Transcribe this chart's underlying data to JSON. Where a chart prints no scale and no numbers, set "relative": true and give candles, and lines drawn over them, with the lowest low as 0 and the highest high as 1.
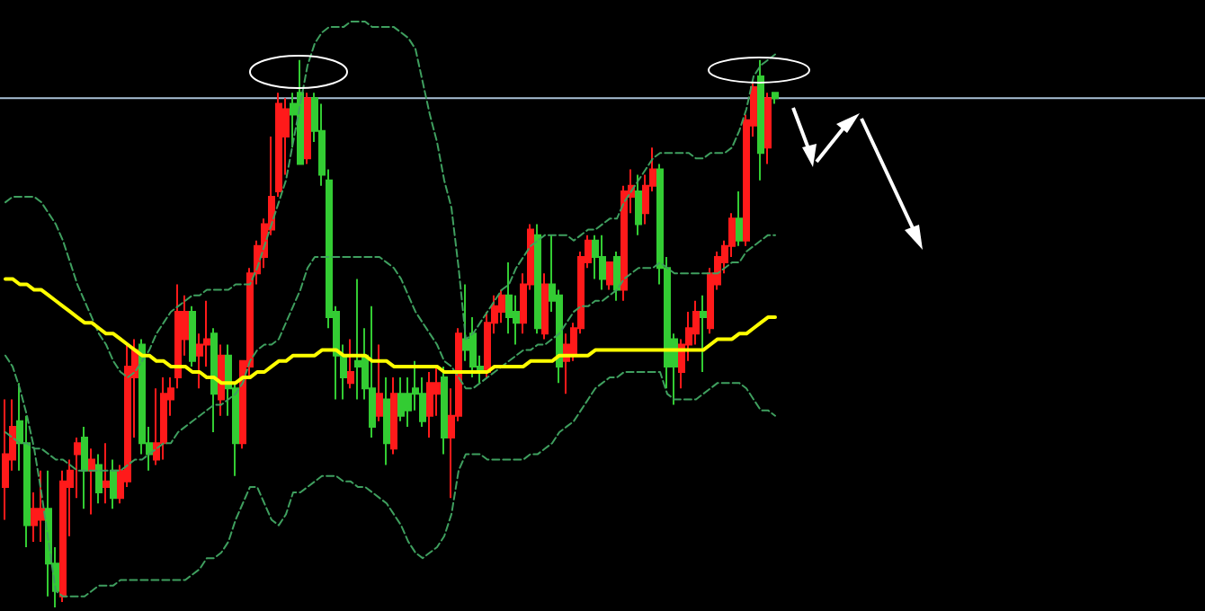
{
  "chart_data": {
    "type": "candlestick",
    "relative": true,
    "categories": [
      null,
      null,
      null,
      null,
      null,
      null,
      null,
      null,
      null,
      null,
      null,
      null,
      null,
      null,
      null,
      null,
      null,
      null,
      null,
      null,
      null,
      null,
      null,
      null,
      null,
      null,
      null,
      null,
      null,
      null,
      null,
      null,
      null,
      null,
      null,
      null,
      null,
      null,
      null,
      null,
      null,
      null,
      null,
      null,
      null,
      null,
      null,
      null,
      null,
      null,
      null,
      null,
      null,
      null,
      null,
      null,
      null,
      null,
      null,
      null,
      null,
      null,
      null,
      null,
      null,
      null,
      null,
      null,
      null,
      null,
      null,
      null,
      null,
      null,
      null,
      null,
      null,
      null,
      null,
      null,
      null,
      null,
      null,
      null,
      null,
      null,
      null,
      null,
      null,
      null,
      null,
      null,
      null,
      null,
      null,
      null,
      null,
      null,
      null,
      null,
      null,
      null,
      null,
      null,
      null,
      null,
      null,
      null
    ],
    "ohlc": [
      [
        0.22,
        0.38,
        0.16,
        0.28
      ],
      [
        0.27,
        0.38,
        0.25,
        0.33
      ],
      [
        0.34,
        0.41,
        0.25,
        0.3
      ],
      [
        0.3,
        0.35,
        0.11,
        0.15
      ],
      [
        0.15,
        0.21,
        0.12,
        0.18
      ],
      [
        0.16,
        0.25,
        0.12,
        0.18
      ],
      [
        0.18,
        0.25,
        0.02,
        0.08
      ],
      [
        0.08,
        0.11,
        0,
        0.03
      ],
      [
        0.02,
        0.25,
        0.01,
        0.23
      ],
      [
        0.22,
        0.27,
        0.13,
        0.25
      ],
      [
        0.28,
        0.31,
        0.2,
        0.3
      ],
      [
        0.31,
        0.33,
        0.18,
        0.25
      ],
      [
        0.25,
        0.29,
        0.17,
        0.27
      ],
      [
        0.26,
        0.28,
        0.19,
        0.21
      ],
      [
        0.22,
        0.3,
        0.19,
        0.23
      ],
      [
        0.25,
        0.27,
        0.18,
        0.2
      ],
      [
        0.2,
        0.26,
        0.19,
        0.25
      ],
      [
        0.23,
        0.48,
        0.22,
        0.44
      ],
      [
        0.42,
        0.49,
        0.31,
        0.47
      ],
      [
        0.48,
        0.49,
        0.28,
        0.3
      ],
      [
        0.3,
        0.33,
        0.25,
        0.28
      ],
      [
        0.27,
        0.4,
        0.26,
        0.3
      ],
      [
        0.3,
        0.42,
        0.27,
        0.39
      ],
      [
        0.38,
        0.42,
        0.35,
        0.4
      ],
      [
        0.42,
        0.59,
        0.4,
        0.54
      ],
      [
        0.49,
        0.57,
        0.46,
        0.54
      ],
      [
        0.54,
        0.55,
        0.44,
        0.45
      ],
      [
        0.46,
        0.5,
        0.4,
        0.48
      ],
      [
        0.48,
        0.56,
        0.44,
        0.49
      ],
      [
        0.5,
        0.51,
        0.32,
        0.39
      ],
      [
        0.38,
        0.48,
        0.35,
        0.46
      ],
      [
        0.46,
        0.48,
        0.35,
        0.4
      ],
      [
        0.4,
        0.41,
        0.24,
        0.3
      ],
      [
        0.3,
        0.45,
        0.29,
        0.45
      ],
      [
        0.44,
        0.62,
        0.42,
        0.61
      ],
      [
        0.61,
        0.67,
        0.59,
        0.66
      ],
      [
        0.64,
        0.71,
        0.62,
        0.7
      ],
      [
        0.69,
        0.86,
        0.68,
        0.75
      ],
      [
        0.76,
        0.94,
        0.75,
        0.92
      ],
      [
        0.86,
        0.93,
        0.79,
        0.91
      ],
      [
        0.92,
        0.94,
        0.84,
        0.9
      ],
      [
        0.94,
        1,
        0.81,
        0.81
      ],
      [
        0.82,
        0.94,
        0.81,
        0.93
      ],
      [
        0.93,
        0.94,
        0.85,
        0.87
      ],
      [
        0.87,
        0.92,
        0.77,
        0.79
      ],
      [
        0.78,
        0.8,
        0.51,
        0.53
      ],
      [
        0.54,
        0.55,
        0.38,
        0.46
      ],
      [
        0.46,
        0.48,
        0.38,
        0.42
      ],
      [
        0.41,
        0.49,
        0.4,
        0.43
      ],
      [
        0.45,
        0.6,
        0.38,
        0.44
      ],
      [
        0.46,
        0.51,
        0.38,
        0.4
      ],
      [
        0.4,
        0.55,
        0.31,
        0.33
      ],
      [
        0.35,
        0.48,
        0.34,
        0.39
      ],
      [
        0.38,
        0.42,
        0.26,
        0.3
      ],
      [
        0.29,
        0.42,
        0.28,
        0.39
      ],
      [
        0.39,
        0.42,
        0.34,
        0.35
      ],
      [
        0.39,
        0.42,
        0.33,
        0.36
      ],
      [
        0.4,
        0.45,
        0.36,
        0.39
      ],
      [
        0.39,
        0.42,
        0.33,
        0.34
      ],
      [
        0.35,
        0.43,
        0.31,
        0.41
      ],
      [
        0.39,
        0.44,
        0.35,
        0.41
      ],
      [
        0.42,
        0.44,
        0.28,
        0.31
      ],
      [
        0.31,
        0.4,
        0.2,
        0.35
      ],
      [
        0.35,
        0.51,
        0.34,
        0.5
      ],
      [
        0.49,
        0.59,
        0.45,
        0.47
      ],
      [
        0.5,
        0.53,
        0.42,
        0.44
      ],
      [
        0.44,
        0.46,
        0.41,
        0.43
      ],
      [
        0.43,
        0.54,
        0.42,
        0.52
      ],
      [
        0.52,
        0.57,
        0.5,
        0.55
      ],
      [
        0.54,
        0.58,
        0.52,
        0.57
      ],
      [
        0.57,
        0.63,
        0.5,
        0.53
      ],
      [
        0.54,
        0.57,
        0.48,
        0.52
      ],
      [
        0.52,
        0.61,
        0.5,
        0.59
      ],
      [
        0.59,
        0.7,
        0.58,
        0.69
      ],
      [
        0.68,
        0.7,
        0.5,
        0.51
      ],
      [
        0.5,
        0.61,
        0.49,
        0.59
      ],
      [
        0.59,
        0.68,
        0.54,
        0.56
      ],
      [
        0.57,
        0.58,
        0.41,
        0.44
      ],
      [
        0.45,
        0.5,
        0.39,
        0.48
      ],
      [
        0.46,
        0.52,
        0.45,
        0.51
      ],
      [
        0.51,
        0.65,
        0.5,
        0.64
      ],
      [
        0.63,
        0.68,
        0.62,
        0.67
      ],
      [
        0.67,
        0.68,
        0.6,
        0.64
      ],
      [
        0.64,
        0.68,
        0.58,
        0.6
      ],
      [
        0.59,
        0.63,
        0.58,
        0.63
      ],
      [
        0.64,
        0.65,
        0.56,
        0.58
      ],
      [
        0.58,
        0.77,
        0.56,
        0.76
      ],
      [
        0.75,
        0.8,
        0.72,
        0.77
      ],
      [
        0.76,
        0.79,
        0.68,
        0.7
      ],
      [
        0.72,
        0.79,
        0.7,
        0.77
      ],
      [
        0.77,
        0.84,
        0.76,
        0.8
      ],
      [
        0.8,
        0.81,
        0.59,
        0.62
      ],
      [
        0.62,
        0.64,
        0.4,
        0.44
      ],
      [
        0.49,
        0.5,
        0.37,
        0.44
      ],
      [
        0.43,
        0.49,
        0.4,
        0.48
      ],
      [
        0.48,
        0.54,
        0.45,
        0.51
      ],
      [
        0.5,
        0.56,
        0.48,
        0.54
      ],
      [
        0.54,
        0.57,
        0.43,
        0.53
      ],
      [
        0.51,
        0.62,
        0.5,
        0.61
      ],
      [
        0.59,
        0.65,
        0.58,
        0.64
      ],
      [
        0.63,
        0.67,
        0.61,
        0.66
      ],
      [
        0.66,
        0.72,
        0.64,
        0.71
      ],
      [
        0.71,
        0.76,
        0.66,
        0.67
      ],
      [
        0.67,
        0.9,
        0.66,
        0.89
      ],
      [
        0.88,
        0.96,
        0.86,
        0.95
      ],
      [
        0.97,
        1,
        0.78,
        0.83
      ],
      [
        0.84,
        0.94,
        0.81,
        0.93
      ],
      [
        0.94,
        0.94,
        0.92,
        0.93
      ]
    ],
    "colors": [
      "#ff1a1a",
      "#ff1a1a",
      "#33cc33",
      "#33cc33",
      "#ff1a1a",
      "#ff1a1a",
      "#33cc33",
      "#33cc33",
      "#ff1a1a",
      "#ff1a1a",
      "#ff1a1a",
      "#33cc33",
      "#ff1a1a",
      "#33cc33",
      "#ff1a1a",
      "#33cc33",
      "#ff1a1a",
      "#ff1a1a",
      "#ff1a1a",
      "#33cc33",
      "#33cc33",
      "#ff1a1a",
      "#ff1a1a",
      "#ff1a1a",
      "#ff1a1a",
      "#ff1a1a",
      "#33cc33",
      "#ff1a1a",
      "#ff1a1a",
      "#33cc33",
      "#ff1a1a",
      "#33cc33",
      "#33cc33",
      "#ff1a1a",
      "#ff1a1a",
      "#ff1a1a",
      "#ff1a1a",
      "#ff1a1a",
      "#ff1a1a",
      "#ff1a1a",
      "#33cc33",
      "#33cc33",
      "#ff1a1a",
      "#33cc33",
      "#33cc33",
      "#33cc33",
      "#33cc33",
      "#33cc33",
      "#ff1a1a",
      "#33cc33",
      "#33cc33",
      "#33cc33",
      "#ff1a1a",
      "#33cc33",
      "#ff1a1a",
      "#33cc33",
      "#33cc33",
      "#33cc33",
      "#33cc33",
      "#ff1a1a",
      "#ff1a1a",
      "#33cc33",
      "#ff1a1a",
      "#ff1a1a",
      "#33cc33",
      "#33cc33",
      "#33cc33",
      "#ff1a1a",
      "#ff1a1a",
      "#ff1a1a",
      "#33cc33",
      "#33cc33",
      "#ff1a1a",
      "#ff1a1a",
      "#33cc33",
      "#ff1a1a",
      "#33cc33",
      "#33cc33",
      "#ff1a1a",
      "#ff1a1a",
      "#ff1a1a",
      "#ff1a1a",
      "#33cc33",
      "#33cc33",
      "#ff1a1a",
      "#33cc33",
      "#ff1a1a",
      "#ff1a1a",
      "#33cc33",
      "#ff1a1a",
      "#ff1a1a",
      "#33cc33",
      "#33cc33",
      "#33cc33",
      "#ff1a1a",
      "#ff1a1a",
      "#ff1a1a",
      "#33cc33",
      "#ff1a1a",
      "#ff1a1a",
      "#ff1a1a",
      "#ff1a1a",
      "#33cc33",
      "#ff1a1a",
      "#ff1a1a",
      "#33cc33",
      "#ff1a1a",
      "#33cc33"
    ],
    "series": [
      {
        "type": "line",
        "color": "#3f9f5f",
        "line_style": "dashed",
        "values": [
          0.74,
          0.75,
          0.75,
          0.75,
          0.75,
          0.74,
          0.72,
          0.7,
          0.67,
          0.63,
          0.59,
          0.56,
          0.53,
          0.5,
          0.48,
          0.45,
          0.43,
          0.42,
          0.43,
          0.45,
          0.47,
          0.5,
          0.52,
          0.54,
          0.55,
          0.56,
          0.57,
          0.57,
          0.58,
          0.58,
          0.58,
          0.58,
          0.59,
          0.59,
          0.59,
          0.62,
          0.66,
          0.7,
          0.74,
          0.78,
          0.85,
          0.92,
          0.99,
          1.03,
          1.05,
          1.06,
          1.06,
          1.06,
          1.07,
          1.07,
          1.07,
          1.06,
          1.06,
          1.06,
          1.06,
          1.05,
          1.04,
          1.02,
          0.96,
          0.9,
          0.85,
          0.78,
          0.73,
          0.62,
          0.49,
          0.5,
          0.52,
          0.54,
          0.56,
          0.58,
          0.59,
          0.62,
          0.64,
          0.66,
          0.67,
          0.68,
          0.68,
          0.68,
          0.68,
          0.67,
          0.68,
          0.69,
          0.69,
          0.7,
          0.71,
          0.71,
          0.74,
          0.76,
          0.78,
          0.8,
          0.82,
          0.83,
          0.83,
          0.83,
          0.83,
          0.83,
          0.82,
          0.82,
          0.83,
          0.83,
          0.83,
          0.84,
          0.87,
          0.91,
          0.97,
          0.99,
          1.0,
          1.01
        ]
      },
      {
        "type": "line",
        "color": "#3f9f5f",
        "line_style": "dashed",
        "values": [
          0.32,
          0.31,
          0.3,
          0.3,
          0.29,
          0.29,
          0.28,
          0.27,
          0.27,
          0.26,
          0.25,
          0.25,
          0.25,
          0.25,
          0.25,
          0.25,
          0.25,
          0.26,
          0.27,
          0.27,
          0.28,
          0.29,
          0.3,
          0.3,
          0.32,
          0.33,
          0.34,
          0.35,
          0.36,
          0.37,
          0.37,
          0.38,
          0.39,
          0.41,
          0.45,
          0.47,
          0.48,
          0.48,
          0.49,
          0.52,
          0.55,
          0.58,
          0.62,
          0.64,
          0.64,
          0.64,
          0.64,
          0.64,
          0.64,
          0.64,
          0.64,
          0.64,
          0.64,
          0.63,
          0.62,
          0.6,
          0.57,
          0.54,
          0.52,
          0.5,
          0.48,
          0.45,
          0.44,
          0.42,
          0.4,
          0.4,
          0.41,
          0.42,
          0.43,
          0.44,
          0.45,
          0.46,
          0.47,
          0.47,
          0.48,
          0.48,
          0.49,
          0.5,
          0.52,
          0.54,
          0.55,
          0.55,
          0.56,
          0.56,
          0.57,
          0.58,
          0.6,
          0.61,
          0.62,
          0.62,
          0.62,
          0.63,
          0.62,
          0.61,
          0.61,
          0.61,
          0.61,
          0.61,
          0.61,
          0.61,
          0.62,
          0.63,
          0.63,
          0.65,
          0.66,
          0.67,
          0.68,
          0.68
        ]
      },
      {
        "type": "line",
        "color": "#3f9f5f",
        "line_style": "dashed",
        "values": [
          0.46,
          0.44,
          0.4,
          0.35,
          0.29,
          0.21,
          0.12,
          0.03,
          0.02,
          0.02,
          0.02,
          0.02,
          0.03,
          0.04,
          0.04,
          0.04,
          0.05,
          0.05,
          0.05,
          0.05,
          0.05,
          0.05,
          0.05,
          0.05,
          0.05,
          0.05,
          0.06,
          0.07,
          0.09,
          0.09,
          0.1,
          0.12,
          0.16,
          0.19,
          0.22,
          0.22,
          0.19,
          0.16,
          0.15,
          0.17,
          0.21,
          0.21,
          0.22,
          0.23,
          0.24,
          0.24,
          0.24,
          0.23,
          0.23,
          0.22,
          0.22,
          0.21,
          0.2,
          0.19,
          0.17,
          0.15,
          0.12,
          0.1,
          0.09,
          0.1,
          0.11,
          0.13,
          0.17,
          0.25,
          0.28,
          0.28,
          0.28,
          0.27,
          0.27,
          0.27,
          0.27,
          0.27,
          0.27,
          0.28,
          0.28,
          0.29,
          0.3,
          0.32,
          0.33,
          0.34,
          0.36,
          0.38,
          0.4,
          0.41,
          0.42,
          0.42,
          0.43,
          0.43,
          0.43,
          0.43,
          0.43,
          0.43,
          0.39,
          0.38,
          0.38,
          0.38,
          0.38,
          0.39,
          0.4,
          0.41,
          0.41,
          0.41,
          0.41,
          0.4,
          0.38,
          0.36,
          0.36,
          0.35
        ]
      },
      {
        "type": "line",
        "color": "#ffff00",
        "line_style": "solid",
        "values": [
          0.6,
          0.6,
          0.59,
          0.59,
          0.58,
          0.58,
          0.57,
          0.56,
          0.55,
          0.54,
          0.53,
          0.52,
          0.52,
          0.51,
          0.5,
          0.5,
          0.49,
          0.48,
          0.47,
          0.46,
          0.46,
          0.45,
          0.45,
          0.44,
          0.44,
          0.44,
          0.43,
          0.43,
          0.42,
          0.42,
          0.41,
          0.41,
          0.41,
          0.42,
          0.42,
          0.43,
          0.43,
          0.44,
          0.45,
          0.45,
          0.46,
          0.46,
          0.46,
          0.46,
          0.47,
          0.47,
          0.47,
          0.46,
          0.46,
          0.46,
          0.46,
          0.45,
          0.45,
          0.45,
          0.44,
          0.44,
          0.44,
          0.44,
          0.44,
          0.44,
          0.44,
          0.43,
          0.43,
          0.43,
          0.43,
          0.43,
          0.43,
          0.43,
          0.44,
          0.44,
          0.44,
          0.44,
          0.44,
          0.45,
          0.45,
          0.45,
          0.45,
          0.46,
          0.46,
          0.46,
          0.46,
          0.46,
          0.47,
          0.47,
          0.47,
          0.47,
          0.47,
          0.47,
          0.47,
          0.47,
          0.47,
          0.47,
          0.47,
          0.47,
          0.47,
          0.47,
          0.47,
          0.47,
          0.48,
          0.49,
          0.49,
          0.49,
          0.5,
          0.5,
          0.51,
          0.52,
          0.53,
          0.53
        ]
      }
    ],
    "ref_lines": [
      {
        "axis": "y",
        "value": 0.93,
        "color": "#a9c0d6"
      }
    ]
  }
}
